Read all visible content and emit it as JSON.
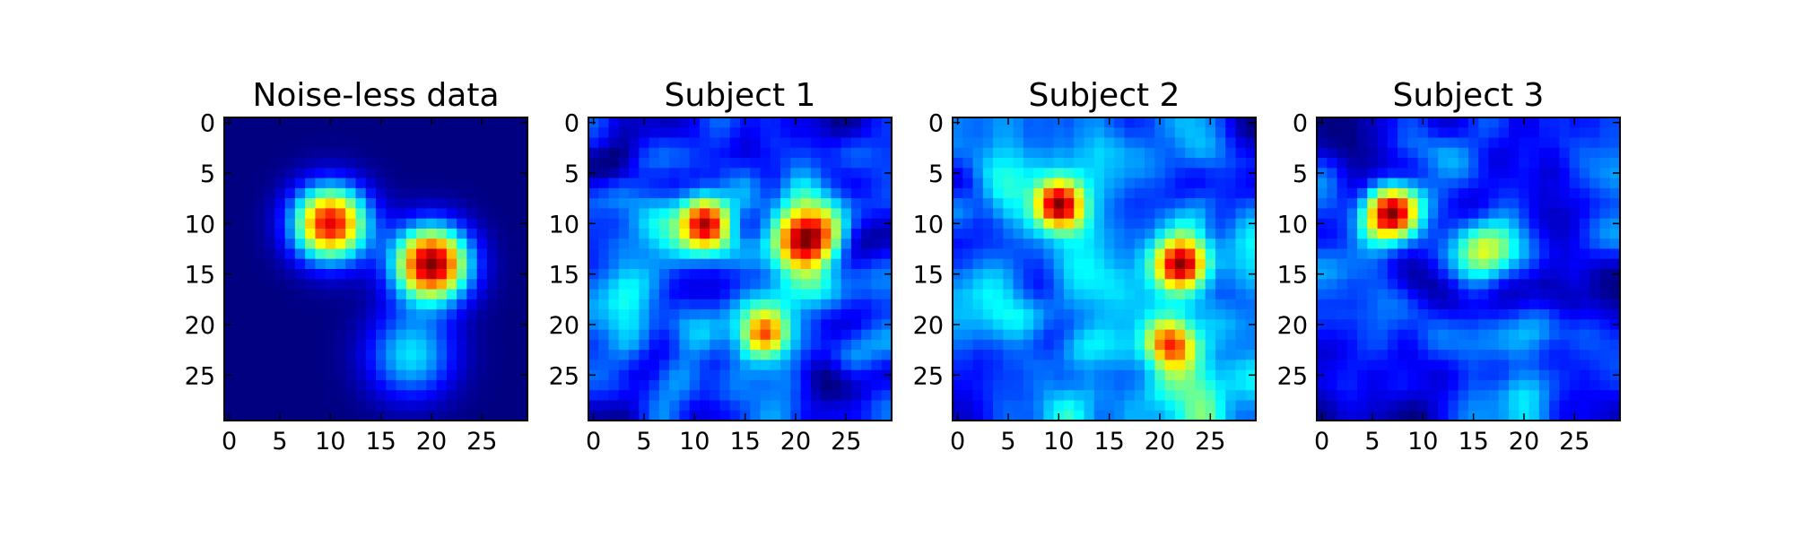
{
  "chart_data": [
    {
      "type": "heatmap",
      "title": "Noise-less data",
      "colormap": "jet",
      "grid": [
        30,
        30
      ],
      "xlim": [
        -0.5,
        29.5
      ],
      "ylim": [
        29.5,
        -0.5
      ],
      "xticks": [
        0,
        5,
        10,
        15,
        20,
        25
      ],
      "yticks": [
        0,
        5,
        10,
        15,
        20,
        25
      ],
      "xtick_labels": [
        "0",
        "5",
        "10",
        "15",
        "20",
        "25"
      ],
      "ytick_labels": [
        "0",
        "5",
        "10",
        "15",
        "20",
        "25"
      ],
      "noise": 0.0,
      "blobs": [
        {
          "x": 10,
          "y": 10,
          "amp": 0.9,
          "sigma": 2.6
        },
        {
          "x": 20,
          "y": 14,
          "amp": 1.0,
          "sigma": 2.6
        },
        {
          "x": 18,
          "y": 23,
          "amp": 0.35,
          "sigma": 3.0
        }
      ]
    },
    {
      "type": "heatmap",
      "title": "Subject 1",
      "colormap": "jet",
      "grid": [
        30,
        30
      ],
      "xlim": [
        -0.5,
        29.5
      ],
      "ylim": [
        29.5,
        -0.5
      ],
      "xticks": [
        0,
        5,
        10,
        15,
        20,
        25
      ],
      "yticks": [
        0,
        5,
        10,
        15,
        20,
        25
      ],
      "xtick_labels": [
        "0",
        "5",
        "10",
        "15",
        "20",
        "25"
      ],
      "ytick_labels": [
        "0",
        "5",
        "10",
        "15",
        "20",
        "25"
      ],
      "noise": 0.28,
      "seed": 11,
      "blobs": [
        {
          "x": 11,
          "y": 10,
          "amp": 0.95,
          "sigma": 1.9
        },
        {
          "x": 21,
          "y": 12,
          "amp": 1.0,
          "sigma": 2.4
        },
        {
          "x": 17,
          "y": 21,
          "amp": 0.7,
          "sigma": 1.6
        }
      ]
    },
    {
      "type": "heatmap",
      "title": "Subject 2",
      "colormap": "jet",
      "grid": [
        30,
        30
      ],
      "xlim": [
        -0.5,
        29.5
      ],
      "ylim": [
        29.5,
        -0.5
      ],
      "xticks": [
        0,
        5,
        10,
        15,
        20,
        25
      ],
      "yticks": [
        0,
        5,
        10,
        15,
        20,
        25
      ],
      "xtick_labels": [
        "0",
        "5",
        "10",
        "15",
        "20",
        "25"
      ],
      "ytick_labels": [
        "0",
        "5",
        "10",
        "15",
        "20",
        "25"
      ],
      "noise": 0.28,
      "seed": 23,
      "blobs": [
        {
          "x": 10,
          "y": 8,
          "amp": 0.8,
          "sigma": 1.8
        },
        {
          "x": 22,
          "y": 14,
          "amp": 0.95,
          "sigma": 1.9
        },
        {
          "x": 21,
          "y": 22,
          "amp": 0.6,
          "sigma": 1.8
        }
      ]
    },
    {
      "type": "heatmap",
      "title": "Subject 3",
      "colormap": "jet",
      "grid": [
        30,
        30
      ],
      "xlim": [
        -0.5,
        29.5
      ],
      "ylim": [
        29.5,
        -0.5
      ],
      "xticks": [
        0,
        5,
        10,
        15,
        20,
        25
      ],
      "yticks": [
        0,
        5,
        10,
        15,
        20,
        25
      ],
      "xtick_labels": [
        "0",
        "5",
        "10",
        "15",
        "20",
        "25"
      ],
      "ytick_labels": [
        "0",
        "5",
        "10",
        "15",
        "20",
        "25"
      ],
      "noise": 0.28,
      "seed": 37,
      "blobs": [
        {
          "x": 7,
          "y": 9,
          "amp": 1.0,
          "sigma": 2.0
        },
        {
          "x": 16,
          "y": 13,
          "amp": 0.45,
          "sigma": 2.0
        }
      ]
    }
  ]
}
